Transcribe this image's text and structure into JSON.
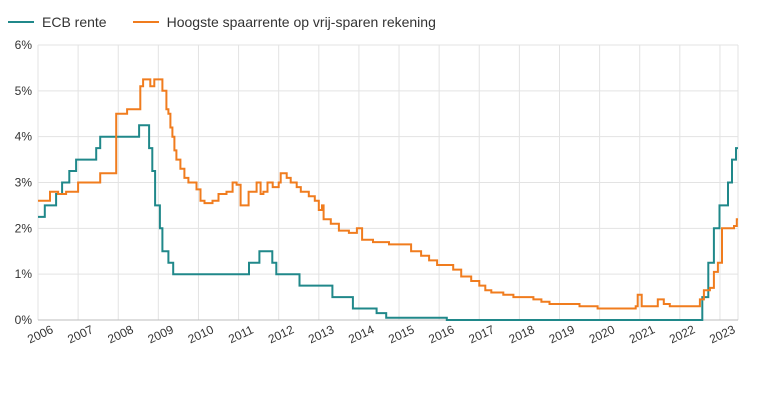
{
  "legend": {
    "items": [
      {
        "label": "ECB rente",
        "color": "#20888a"
      },
      {
        "label": "Hoogste spaarrente op vrij-sparen rekening",
        "color": "#f07c1e"
      }
    ]
  },
  "chart_data": {
    "type": "line",
    "title": "",
    "xlabel": "",
    "ylabel": "",
    "xlim": [
      2006.0,
      2023.45
    ],
    "ylim": [
      0,
      6
    ],
    "x_ticks": [
      "2006",
      "2007",
      "2008",
      "2009",
      "2010",
      "2011",
      "2012",
      "2013",
      "2014",
      "2015",
      "2016",
      "2017",
      "2018",
      "2019",
      "2020",
      "2021",
      "2022",
      "2023"
    ],
    "y_ticks": [
      "0%",
      "1%",
      "2%",
      "3%",
      "4%",
      "5%",
      "6%"
    ],
    "grid": true,
    "legend_position": "top-left",
    "series": [
      {
        "name": "ECB rente",
        "color": "#20888a",
        "step": true,
        "points": [
          [
            2006.0,
            2.25
          ],
          [
            2006.17,
            2.5
          ],
          [
            2006.45,
            2.75
          ],
          [
            2006.6,
            3.0
          ],
          [
            2006.78,
            3.25
          ],
          [
            2006.95,
            3.5
          ],
          [
            2007.45,
            3.75
          ],
          [
            2007.55,
            4.0
          ],
          [
            2008.52,
            4.25
          ],
          [
            2008.77,
            3.75
          ],
          [
            2008.85,
            3.25
          ],
          [
            2008.92,
            2.5
          ],
          [
            2009.04,
            2.0
          ],
          [
            2009.1,
            1.5
          ],
          [
            2009.25,
            1.25
          ],
          [
            2009.37,
            1.0
          ],
          [
            2011.26,
            1.25
          ],
          [
            2011.52,
            1.5
          ],
          [
            2011.84,
            1.25
          ],
          [
            2011.94,
            1.0
          ],
          [
            2012.52,
            0.75
          ],
          [
            2013.34,
            0.5
          ],
          [
            2013.85,
            0.25
          ],
          [
            2014.44,
            0.15
          ],
          [
            2014.68,
            0.05
          ],
          [
            2016.19,
            0.0
          ],
          [
            2022.56,
            0.5
          ],
          [
            2022.71,
            1.25
          ],
          [
            2022.85,
            2.0
          ],
          [
            2022.99,
            2.5
          ],
          [
            2023.2,
            3.0
          ],
          [
            2023.3,
            3.5
          ],
          [
            2023.4,
            3.75
          ],
          [
            2023.45,
            3.75
          ]
        ]
      },
      {
        "name": "Hoogste spaarrente op vrij-sparen rekening",
        "color": "#f07c1e",
        "step": true,
        "points": [
          [
            2006.0,
            2.6
          ],
          [
            2006.3,
            2.8
          ],
          [
            2006.5,
            2.75
          ],
          [
            2006.7,
            2.8
          ],
          [
            2007.0,
            3.0
          ],
          [
            2007.55,
            3.2
          ],
          [
            2007.95,
            4.5
          ],
          [
            2008.22,
            4.6
          ],
          [
            2008.55,
            5.1
          ],
          [
            2008.62,
            5.25
          ],
          [
            2008.8,
            5.1
          ],
          [
            2008.9,
            5.25
          ],
          [
            2009.1,
            5.0
          ],
          [
            2009.2,
            4.6
          ],
          [
            2009.25,
            4.5
          ],
          [
            2009.3,
            4.2
          ],
          [
            2009.35,
            4.0
          ],
          [
            2009.4,
            3.7
          ],
          [
            2009.45,
            3.5
          ],
          [
            2009.55,
            3.3
          ],
          [
            2009.65,
            3.1
          ],
          [
            2009.75,
            3.0
          ],
          [
            2009.95,
            2.85
          ],
          [
            2010.05,
            2.6
          ],
          [
            2010.15,
            2.55
          ],
          [
            2010.35,
            2.6
          ],
          [
            2010.5,
            2.75
          ],
          [
            2010.7,
            2.8
          ],
          [
            2010.85,
            3.0
          ],
          [
            2010.95,
            2.95
          ],
          [
            2011.05,
            2.5
          ],
          [
            2011.25,
            2.8
          ],
          [
            2011.45,
            3.0
          ],
          [
            2011.55,
            2.75
          ],
          [
            2011.62,
            2.8
          ],
          [
            2011.72,
            3.0
          ],
          [
            2011.85,
            2.9
          ],
          [
            2012.0,
            3.0
          ],
          [
            2012.05,
            3.2
          ],
          [
            2012.2,
            3.1
          ],
          [
            2012.3,
            3.0
          ],
          [
            2012.45,
            2.9
          ],
          [
            2012.55,
            2.8
          ],
          [
            2012.75,
            2.7
          ],
          [
            2012.9,
            2.6
          ],
          [
            2013.0,
            2.4
          ],
          [
            2013.08,
            2.5
          ],
          [
            2013.12,
            2.2
          ],
          [
            2013.3,
            2.1
          ],
          [
            2013.5,
            1.95
          ],
          [
            2013.75,
            1.9
          ],
          [
            2013.95,
            2.0
          ],
          [
            2014.08,
            1.75
          ],
          [
            2014.35,
            1.7
          ],
          [
            2014.75,
            1.65
          ],
          [
            2015.3,
            1.5
          ],
          [
            2015.55,
            1.4
          ],
          [
            2015.75,
            1.3
          ],
          [
            2015.95,
            1.2
          ],
          [
            2016.35,
            1.1
          ],
          [
            2016.55,
            0.95
          ],
          [
            2016.8,
            0.85
          ],
          [
            2017.0,
            0.75
          ],
          [
            2017.15,
            0.65
          ],
          [
            2017.3,
            0.6
          ],
          [
            2017.6,
            0.55
          ],
          [
            2017.85,
            0.5
          ],
          [
            2018.35,
            0.45
          ],
          [
            2018.55,
            0.4
          ],
          [
            2018.75,
            0.35
          ],
          [
            2019.5,
            0.3
          ],
          [
            2019.95,
            0.25
          ],
          [
            2020.9,
            0.3
          ],
          [
            2020.95,
            0.55
          ],
          [
            2021.05,
            0.3
          ],
          [
            2021.45,
            0.45
          ],
          [
            2021.6,
            0.35
          ],
          [
            2021.75,
            0.3
          ],
          [
            2022.5,
            0.45
          ],
          [
            2022.6,
            0.65
          ],
          [
            2022.75,
            0.7
          ],
          [
            2022.85,
            1.05
          ],
          [
            2022.95,
            1.25
          ],
          [
            2023.05,
            2.0
          ],
          [
            2023.35,
            2.05
          ],
          [
            2023.42,
            2.2
          ],
          [
            2023.45,
            2.2
          ]
        ]
      }
    ]
  }
}
